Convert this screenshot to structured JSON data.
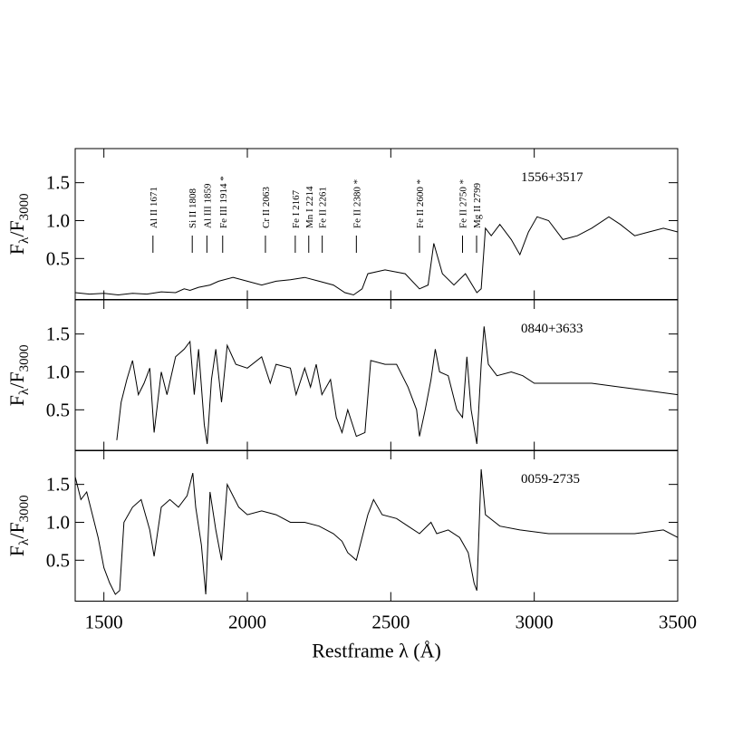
{
  "chart_data": [
    {
      "type": "line",
      "name": "1556+3517",
      "ylabel": [
        "F",
        "λ",
        "/F",
        "3000"
      ],
      "xlim": [
        1400,
        3500
      ],
      "ylim": [
        -0.04,
        1.95
      ],
      "yticks": [
        0.5,
        {
          "value": 1,
          "label": "1.0"
        },
        1.5
      ],
      "color": "#000000",
      "annotations": [
        {
          "text": "Al II 1671",
          "x": 1671
        },
        {
          "text": "Si II 1808",
          "x": 1808
        },
        {
          "text": "Al III 1859",
          "x": 1859
        },
        {
          "text": "Fe III 1914 *",
          "x": 1914
        },
        {
          "text": "Cr II 2063",
          "x": 2063
        },
        {
          "text": "Fe I 2167",
          "x": 2167
        },
        {
          "text": "Mn I 2214",
          "x": 2214
        },
        {
          "text": "Fe II 2261",
          "x": 2261
        },
        {
          "text": "Fe II 2380 *",
          "x": 2380
        },
        {
          "text": "Fe II 2600 *",
          "x": 2600
        },
        {
          "text": "Fe II 2750 *",
          "x": 2750
        },
        {
          "text": "Mg II 2799",
          "x": 2799
        }
      ],
      "x": [
        1400,
        1450,
        1500,
        1550,
        1600,
        1650,
        1700,
        1750,
        1780,
        1800,
        1830,
        1870,
        1900,
        1950,
        2000,
        2050,
        2100,
        2150,
        2200,
        2250,
        2300,
        2340,
        2370,
        2400,
        2420,
        2480,
        2550,
        2600,
        2630,
        2650,
        2680,
        2720,
        2760,
        2800,
        2815,
        2830,
        2850,
        2880,
        2920,
        2950,
        2980,
        3010,
        3050,
        3100,
        3150,
        3200,
        3260,
        3300,
        3350,
        3400,
        3450,
        3500
      ],
      "values": [
        0.05,
        0.03,
        0.04,
        0.02,
        0.04,
        0.03,
        0.06,
        0.05,
        0.1,
        0.08,
        0.12,
        0.15,
        0.2,
        0.25,
        0.2,
        0.15,
        0.2,
        0.22,
        0.25,
        0.2,
        0.15,
        0.05,
        0.02,
        0.1,
        0.3,
        0.35,
        0.3,
        0.1,
        0.15,
        0.7,
        0.3,
        0.15,
        0.3,
        0.05,
        0.1,
        0.9,
        0.8,
        0.95,
        0.75,
        0.55,
        0.85,
        1.05,
        1.0,
        0.75,
        0.8,
        0.9,
        1.05,
        0.95,
        0.8,
        0.85,
        0.9,
        0.85
      ]
    },
    {
      "type": "line",
      "name": "0840+3633",
      "ylabel": [
        "F",
        "λ",
        "/F",
        "3000"
      ],
      "xlim": [
        1400,
        3500
      ],
      "ylim": [
        -0.04,
        1.95
      ],
      "yticks": [
        0.5,
        {
          "value": 1,
          "label": "1.0"
        },
        1.5
      ],
      "color": "#000000",
      "x": [
        1545,
        1560,
        1580,
        1600,
        1620,
        1640,
        1660,
        1675,
        1700,
        1720,
        1750,
        1780,
        1800,
        1815,
        1830,
        1850,
        1860,
        1875,
        1890,
        1910,
        1930,
        1960,
        2000,
        2050,
        2080,
        2100,
        2150,
        2170,
        2200,
        2220,
        2240,
        2260,
        2290,
        2310,
        2330,
        2350,
        2380,
        2410,
        2430,
        2480,
        2520,
        2560,
        2590,
        2600,
        2620,
        2640,
        2655,
        2670,
        2700,
        2730,
        2750,
        2765,
        2780,
        2800,
        2815,
        2825,
        2840,
        2870,
        2920,
        2960,
        3000,
        3100,
        3200,
        3300,
        3400,
        3500
      ],
      "values": [
        0.1,
        0.6,
        0.9,
        1.15,
        0.7,
        0.85,
        1.05,
        0.2,
        1.0,
        0.7,
        1.2,
        1.3,
        1.4,
        0.7,
        1.3,
        0.3,
        0.05,
        0.9,
        1.3,
        0.6,
        1.35,
        1.1,
        1.05,
        1.2,
        0.85,
        1.1,
        1.05,
        0.7,
        1.05,
        0.8,
        1.1,
        0.7,
        0.9,
        0.4,
        0.2,
        0.5,
        0.15,
        0.2,
        1.15,
        1.1,
        1.1,
        0.8,
        0.5,
        0.15,
        0.5,
        0.9,
        1.3,
        1.0,
        0.95,
        0.5,
        0.4,
        1.2,
        0.5,
        0.05,
        1.1,
        1.6,
        1.1,
        0.95,
        1.0,
        0.95,
        0.85,
        0.85,
        0.85,
        0.8,
        0.75,
        0.7
      ]
    },
    {
      "type": "line",
      "name": "0059-2735",
      "ylabel": [
        "F",
        "λ",
        "/F",
        "3000"
      ],
      "xlabel": "Restframe λ (Å)",
      "xlim": [
        1400,
        3500
      ],
      "ylim": [
        -0.04,
        1.95
      ],
      "yticks": [
        0.5,
        {
          "value": 1,
          "label": "1.0"
        },
        1.5
      ],
      "xticks": [
        1500,
        2000,
        2500,
        3000,
        3500
      ],
      "color": "#000000",
      "x": [
        1400,
        1420,
        1440,
        1460,
        1480,
        1500,
        1520,
        1540,
        1555,
        1570,
        1600,
        1630,
        1660,
        1675,
        1700,
        1730,
        1760,
        1790,
        1810,
        1820,
        1840,
        1855,
        1870,
        1890,
        1910,
        1930,
        1970,
        2000,
        2050,
        2100,
        2150,
        2200,
        2250,
        2300,
        2330,
        2350,
        2380,
        2420,
        2440,
        2470,
        2520,
        2560,
        2600,
        2640,
        2660,
        2700,
        2740,
        2770,
        2790,
        2800,
        2815,
        2830,
        2880,
        2950,
        3050,
        3150,
        3250,
        3350,
        3450,
        3500
      ],
      "values": [
        1.6,
        1.3,
        1.4,
        1.1,
        0.8,
        0.4,
        0.2,
        0.05,
        0.1,
        1.0,
        1.2,
        1.3,
        0.9,
        0.55,
        1.2,
        1.3,
        1.2,
        1.35,
        1.65,
        1.2,
        0.7,
        0.05,
        1.4,
        0.9,
        0.5,
        1.5,
        1.2,
        1.1,
        1.15,
        1.1,
        1.0,
        1.0,
        0.95,
        0.85,
        0.75,
        0.6,
        0.5,
        1.1,
        1.3,
        1.1,
        1.05,
        0.95,
        0.85,
        1.0,
        0.85,
        0.9,
        0.8,
        0.6,
        0.2,
        0.1,
        1.7,
        1.1,
        0.95,
        0.9,
        0.85,
        0.85,
        0.85,
        0.85,
        0.9,
        0.8
      ]
    }
  ]
}
